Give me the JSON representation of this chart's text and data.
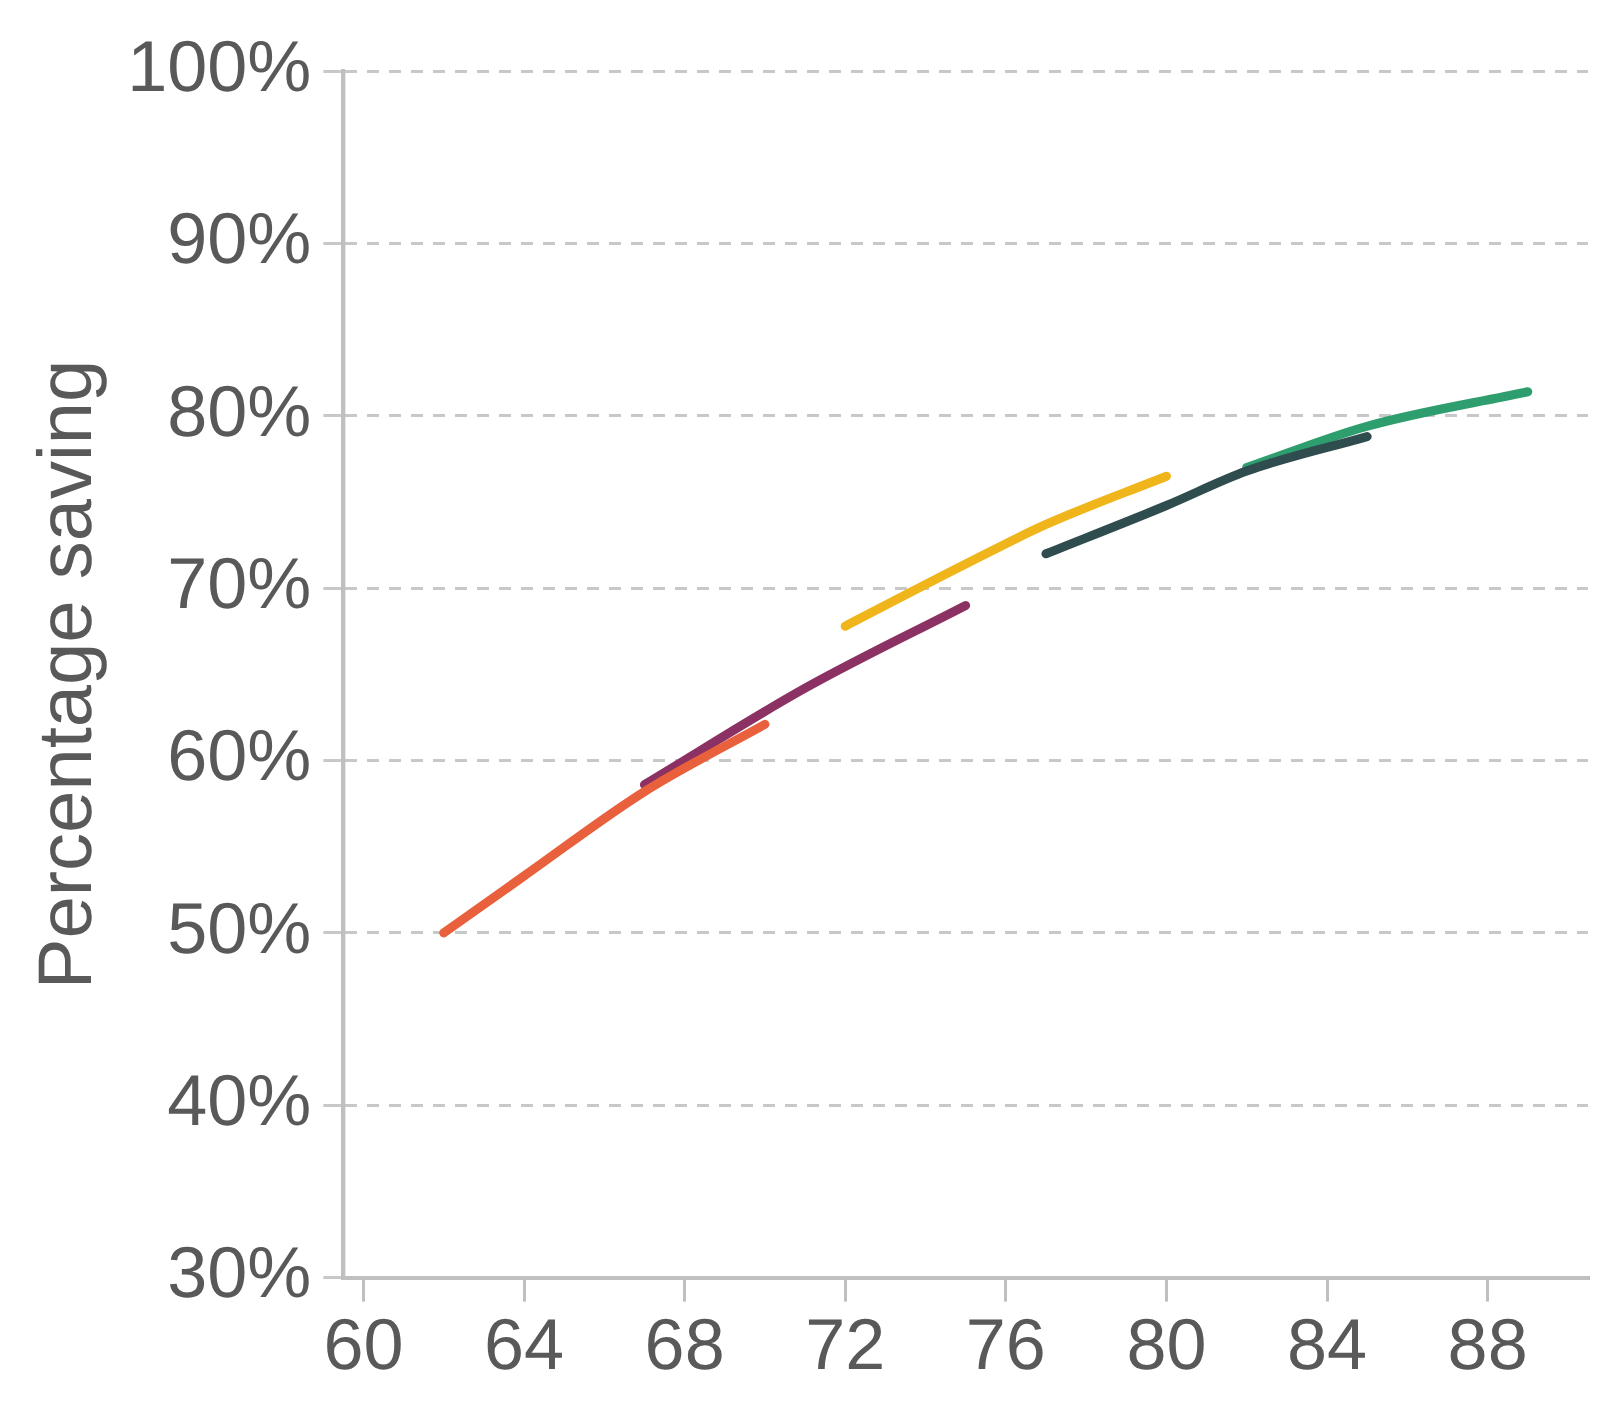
{
  "chart_data": {
    "type": "line",
    "ylabel": "Percentage saving",
    "xlim": [
      59.5,
      90.5
    ],
    "xticks": [
      60,
      64,
      68,
      72,
      76,
      80,
      84,
      88
    ],
    "ylim": [
      30,
      100
    ],
    "yticks": [
      {
        "value": 30,
        "label": "30%"
      },
      {
        "value": 40,
        "label": "40%"
      },
      {
        "value": 50,
        "label": "50%"
      },
      {
        "value": 60,
        "label": "60%"
      },
      {
        "value": 70,
        "label": "70%"
      },
      {
        "value": 80,
        "label": "80%"
      },
      {
        "value": 90,
        "label": "90%"
      },
      {
        "value": 100,
        "label": "100%"
      }
    ],
    "grid": "y",
    "legend": false,
    "marker": "none",
    "line_style": "solid",
    "series": [
      {
        "color": "#e8603c",
        "x": [
          62,
          64,
          67,
          70
        ],
        "values": [
          50,
          53.3,
          58.2,
          62.1
        ]
      },
      {
        "color": "#8b3163",
        "x": [
          67,
          71,
          75
        ],
        "values": [
          58.6,
          64.2,
          69
        ]
      },
      {
        "color": "#f0b51a",
        "x": [
          72,
          75,
          77,
          80
        ],
        "values": [
          67.8,
          71.4,
          73.7,
          76.5
        ]
      },
      {
        "color": "#2f4c4f",
        "x": [
          77,
          80,
          82,
          85
        ],
        "values": [
          72,
          74.8,
          76.8,
          78.8
        ]
      },
      {
        "color": "#2e9e6e",
        "x": [
          82,
          85,
          89
        ],
        "values": [
          77,
          79.4,
          81.4
        ]
      }
    ]
  }
}
